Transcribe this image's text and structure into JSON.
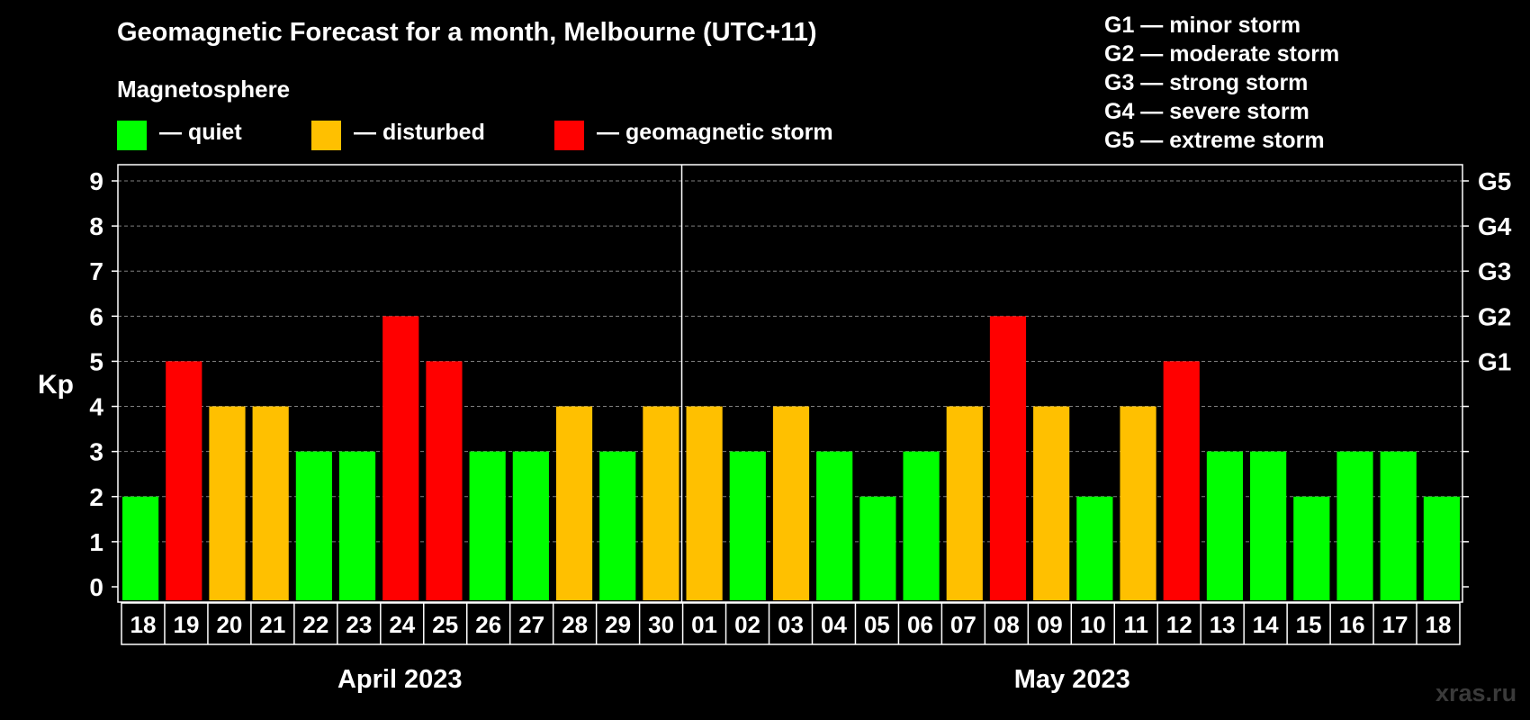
{
  "title": "Geomagnetic Forecast for a month, Melbourne (UTC+11)",
  "magnetosphere_label": "Magnetosphere",
  "legend": [
    {
      "label": "— quiet",
      "color": "#00ff00"
    },
    {
      "label": "— disturbed",
      "color": "#ffc000"
    },
    {
      "label": "— geomagnetic storm",
      "color": "#ff0000"
    }
  ],
  "storm_scale": [
    "G1 — minor storm",
    "G2 — moderate storm",
    "G3 — strong storm",
    "G4 — severe storm",
    "G5 — extreme storm"
  ],
  "watermark": "xras.ru",
  "chart_data": {
    "type": "bar",
    "ylabel": "Kp",
    "ylim": [
      0,
      9
    ],
    "yticks": [
      "0",
      "1",
      "2",
      "3",
      "4",
      "5",
      "6",
      "7",
      "8",
      "9"
    ],
    "right_axis_labels": [
      {
        "kp": 5,
        "label": "G1"
      },
      {
        "kp": 6,
        "label": "G2"
      },
      {
        "kp": 7,
        "label": "G3"
      },
      {
        "kp": 8,
        "label": "G4"
      },
      {
        "kp": 9,
        "label": "G5"
      }
    ],
    "categories": [
      "18",
      "19",
      "20",
      "21",
      "22",
      "23",
      "24",
      "25",
      "26",
      "27",
      "28",
      "29",
      "30",
      "01",
      "02",
      "03",
      "04",
      "05",
      "06",
      "07",
      "08",
      "09",
      "10",
      "11",
      "12",
      "13",
      "14",
      "15",
      "16",
      "17",
      "18"
    ],
    "values": [
      2,
      5,
      4,
      4,
      3,
      3,
      6,
      5,
      3,
      3,
      4,
      3,
      4,
      4,
      3,
      4,
      3,
      2,
      3,
      4,
      6,
      4,
      2,
      4,
      5,
      3,
      3,
      2,
      3,
      3,
      2
    ],
    "months": [
      {
        "label": "April 2023",
        "start": 0,
        "end": 12
      },
      {
        "label": "May 2023",
        "start": 13,
        "end": 30
      }
    ],
    "color_scale": {
      "quiet_max": 3,
      "disturbed_max": 4,
      "quiet": "#00ff00",
      "disturbed": "#ffc000",
      "storm": "#ff0000"
    },
    "grid": true
  }
}
